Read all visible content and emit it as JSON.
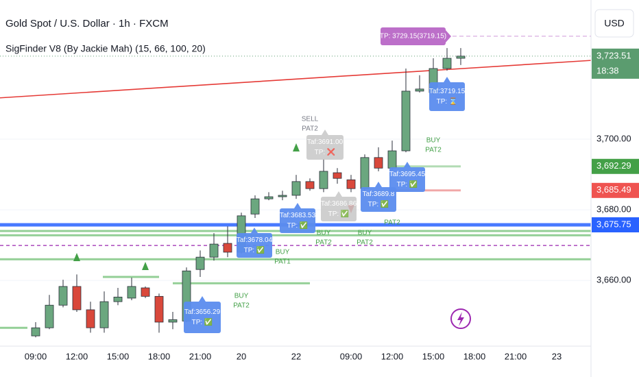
{
  "chart_data": {
    "type": "candlestick",
    "title": "Gold Spot / U.S. Dollar · 1h · FXCM",
    "subtitle": "SigFinder V8 (By Jackie Mah) (15, 66, 100, 20)",
    "currency": "USD",
    "countdown": "18:38",
    "categories": [
      "09:00",
      null,
      null,
      "12:00",
      null,
      null,
      "15:00",
      null,
      null,
      "18:00",
      null,
      null,
      "21:00",
      null,
      null,
      "20",
      null,
      null,
      null,
      "22",
      null,
      null,
      null,
      "09:00",
      null,
      null,
      "12:00",
      null,
      null,
      "15:00",
      null,
      null,
      "18:00",
      null,
      null,
      "21:00",
      null,
      null,
      "23",
      null,
      null
    ],
    "open": [
      3644.3,
      3646.6,
      3653.0,
      3658.3,
      3651.7,
      3646.6,
      3654.0,
      3655.0,
      3657.9,
      3655.5,
      3648.2,
      3648.5,
      3663.1,
      3666.6,
      3670.5,
      3668.0,
      3678.8,
      3683.1,
      3683.7,
      3684.1,
      3688.0,
      3686.0,
      3690.5,
      3688.5,
      3686.0,
      3694.8,
      3691.8,
      3696.7,
      3713.6,
      3713.2,
      3720.0,
      3722.9,
      null,
      null,
      null,
      null,
      null,
      null,
      null,
      null,
      null
    ],
    "high": [
      3648.2,
      3655.9,
      3660.2,
      3661.7,
      3654.0,
      3656.9,
      3657.9,
      3660.8,
      3658.3,
      3656.3,
      3651.1,
      3663.7,
      3668.5,
      3673.4,
      3675.3,
      3679.2,
      3684.1,
      3685.0,
      3685.4,
      3689.9,
      3688.9,
      3694.4,
      3691.8,
      3689.9,
      3695.7,
      3697.7,
      3699.6,
      3720.0,
      3718.1,
      3722.9,
      3725.8,
      3725.8,
      null,
      null,
      null,
      null,
      null,
      null,
      null,
      null,
      null
    ],
    "low": [
      3643.9,
      3646.2,
      3652.4,
      3651.1,
      3645.2,
      3645.2,
      3653.0,
      3654.4,
      3655.0,
      3645.2,
      3646.2,
      3648.2,
      3661.0,
      3665.6,
      3666.6,
      3667.6,
      3677.7,
      3682.7,
      3682.7,
      3683.1,
      3685.4,
      3685.0,
      3687.4,
      3685.0,
      3685.0,
      3690.9,
      3691.3,
      3696.3,
      3713.2,
      3712.6,
      3719.4,
      3721.0,
      null,
      null,
      null,
      null,
      null,
      null,
      null,
      null,
      null
    ],
    "close": [
      3646.6,
      3653.0,
      3658.3,
      3651.7,
      3646.6,
      3654.0,
      3655.3,
      3658.3,
      3655.5,
      3648.2,
      3648.9,
      3662.7,
      3666.6,
      3670.3,
      3668.0,
      3678.3,
      3683.1,
      3683.7,
      3684.1,
      3688.0,
      3686.0,
      3690.9,
      3688.9,
      3686.0,
      3694.8,
      3691.8,
      3696.7,
      3713.6,
      3714.2,
      3720.0,
      3722.9,
      3723.51,
      null,
      null,
      null,
      null,
      null,
      null,
      null,
      null,
      null
    ],
    "up_color": "#6ba77f",
    "down_color": "#d9483b",
    "ylim": [
      3641.4,
      3739.4
    ],
    "yticks": [
      {
        "value": 3660,
        "label": "3,660.00"
      },
      {
        "value": 3680,
        "label": "3,680.00"
      },
      {
        "value": 3700,
        "label": "3,700.00"
      }
    ],
    "last_price": {
      "value": 3723.51,
      "label": "3,723.51",
      "color": "#5b9c6f"
    },
    "price_labels": [
      {
        "value": 3692.29,
        "label": "3,692.29",
        "color": "#43a047"
      },
      {
        "value": 3685.49,
        "label": "3,685.49",
        "color": "#ef5350"
      },
      {
        "value": 3675.75,
        "label": "3,675.75",
        "color": "#2962ff"
      }
    ],
    "lines": [
      3675.75,
      3674.0,
      3672.8,
      3666.0,
      3669.9,
      3729.15,
      3661.0,
      3659.2,
      3646.6,
      3692.29,
      3685.49
    ],
    "trendline": [
      3711.7,
      3722.3
    ],
    "annotations": [
      {
        "lines": [
          "Taf:3656.29",
          "TP: ✅"
        ]
      },
      {
        "lines": [
          "Taf:3678.04",
          "TP: ✅"
        ]
      },
      {
        "lines": [
          "Taf:3683.53",
          "TP: ✅"
        ]
      },
      {
        "lines": [
          "Taf:3686.86",
          "TP: ✅"
        ]
      },
      {
        "lines": [
          "Taf:3691.00",
          "TP: ❌"
        ]
      },
      {
        "lines": [
          "Taf:3689.8",
          "TP: ✅"
        ]
      },
      {
        "lines": [
          "Taf:3695.45",
          "TP: ✅"
        ]
      },
      {
        "lines": [
          "Taf:3719.15",
          "TP: ⌛"
        ]
      },
      {
        "lines": [
          "TP: 3729.15(3719.15)"
        ]
      }
    ],
    "signals": [
      {
        "lines": [
          "BUY",
          "PAT2"
        ]
      },
      {
        "lines": [
          "BUY",
          "PAT1"
        ]
      },
      {
        "lines": [
          "BUY",
          "PAT2"
        ]
      },
      {
        "lines": [
          "BUY",
          "PAT2"
        ]
      },
      {
        "lines": [
          "PAT2"
        ]
      },
      {
        "lines": [
          "BUY",
          "PAT2"
        ]
      },
      {
        "lines": [
          "SELL",
          "PAT2"
        ]
      }
    ]
  }
}
